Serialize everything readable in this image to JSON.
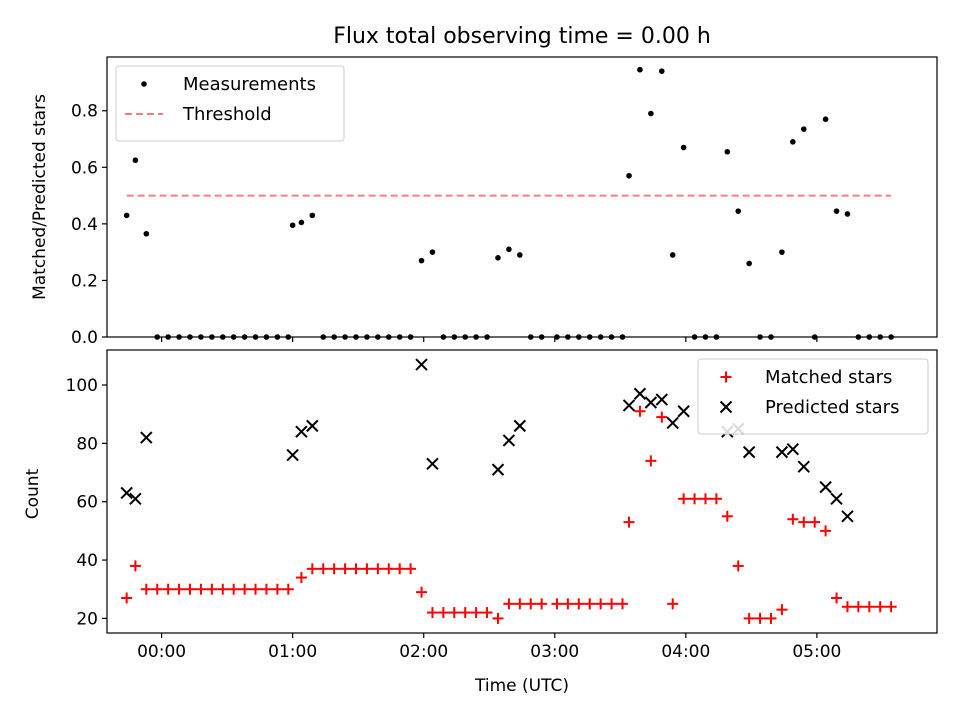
{
  "chart_data": [
    {
      "type": "scatter",
      "title": "Flux total observing time = 0.00 h",
      "xlabel": "",
      "ylabel": "Matched/Predicted stars",
      "xlim": [
        "23:35",
        "05:55"
      ],
      "ylim": [
        0,
        0.99
      ],
      "yticks": [
        "0.0",
        "0.2",
        "0.4",
        "0.6",
        "0.8"
      ],
      "grid": false,
      "legend_position": "top-left",
      "series": [
        {
          "name": "Measurements",
          "color": "#000000",
          "marker": "dot",
          "points": [
            [
              "23:44",
              0.43
            ],
            [
              "23:48",
              0.625
            ],
            [
              "23:53",
              0.365
            ],
            [
              "23:58",
              0
            ],
            [
              "00:03",
              0
            ],
            [
              "00:08",
              0
            ],
            [
              "00:13",
              0
            ],
            [
              "00:18",
              0
            ],
            [
              "00:23",
              0
            ],
            [
              "00:28",
              0
            ],
            [
              "00:33",
              0
            ],
            [
              "00:38",
              0
            ],
            [
              "00:43",
              0
            ],
            [
              "00:48",
              0
            ],
            [
              "00:53",
              0
            ],
            [
              "00:58",
              0
            ],
            [
              "01:00",
              0.395
            ],
            [
              "01:04",
              0.405
            ],
            [
              "01:09",
              0.43
            ],
            [
              "01:14",
              0
            ],
            [
              "01:19",
              0
            ],
            [
              "01:24",
              0
            ],
            [
              "01:29",
              0
            ],
            [
              "01:34",
              0
            ],
            [
              "01:39",
              0
            ],
            [
              "01:44",
              0
            ],
            [
              "01:49",
              0
            ],
            [
              "01:54",
              0
            ],
            [
              "01:59",
              0.27
            ],
            [
              "02:04",
              0.3
            ],
            [
              "02:09",
              0
            ],
            [
              "02:14",
              0
            ],
            [
              "02:19",
              0
            ],
            [
              "02:24",
              0
            ],
            [
              "02:29",
              0
            ],
            [
              "02:34",
              0.28
            ],
            [
              "02:39",
              0.31
            ],
            [
              "02:44",
              0.29
            ],
            [
              "02:49",
              0
            ],
            [
              "02:54",
              0
            ],
            [
              "03:01",
              0
            ],
            [
              "03:06",
              0
            ],
            [
              "03:11",
              0
            ],
            [
              "03:16",
              0
            ],
            [
              "03:21",
              0
            ],
            [
              "03:26",
              0
            ],
            [
              "03:31",
              0
            ],
            [
              "03:34",
              0.57
            ],
            [
              "03:39",
              0.945
            ],
            [
              "03:44",
              0.79
            ],
            [
              "03:49",
              0.94
            ],
            [
              "03:54",
              0.29
            ],
            [
              "03:59",
              0.67
            ],
            [
              "04:04",
              0
            ],
            [
              "04:09",
              0
            ],
            [
              "04:14",
              0
            ],
            [
              "04:19",
              0.655
            ],
            [
              "04:24",
              0.445
            ],
            [
              "04:29",
              0.26
            ],
            [
              "04:34",
              0
            ],
            [
              "04:39",
              0
            ],
            [
              "04:44",
              0.3
            ],
            [
              "04:49",
              0.69
            ],
            [
              "04:54",
              0.735
            ],
            [
              "04:59",
              0
            ],
            [
              "05:04",
              0.77
            ],
            [
              "05:09",
              0.445
            ],
            [
              "05:14",
              0.435
            ],
            [
              "05:19",
              0
            ],
            [
              "05:24",
              0
            ],
            [
              "05:29",
              0
            ],
            [
              "05:34",
              0
            ]
          ]
        },
        {
          "name": "Threshold",
          "color": "#f08080",
          "line": "dashed",
          "points": [
            [
              "23:44",
              0.5
            ],
            [
              "05:34",
              0.5
            ]
          ]
        }
      ]
    },
    {
      "type": "scatter",
      "title": "",
      "xlabel": "Time (UTC)",
      "ylabel": "Count",
      "xlim": [
        "23:35",
        "05:55"
      ],
      "ylim": [
        15,
        112
      ],
      "xticks": [
        "00:00",
        "01:00",
        "02:00",
        "03:00",
        "04:00",
        "05:00"
      ],
      "yticks": [
        "20",
        "40",
        "60",
        "80",
        "100"
      ],
      "grid": false,
      "legend_position": "top-right",
      "series": [
        {
          "name": "Matched stars",
          "color": "#ff0000",
          "marker": "plus",
          "points": [
            [
              "23:44",
              27
            ],
            [
              "23:48",
              38
            ],
            [
              "23:53",
              30
            ],
            [
              "23:58",
              30
            ],
            [
              "00:03",
              30
            ],
            [
              "00:08",
              30
            ],
            [
              "00:13",
              30
            ],
            [
              "00:18",
              30
            ],
            [
              "00:23",
              30
            ],
            [
              "00:28",
              30
            ],
            [
              "00:33",
              30
            ],
            [
              "00:38",
              30
            ],
            [
              "00:43",
              30
            ],
            [
              "00:48",
              30
            ],
            [
              "00:53",
              30
            ],
            [
              "00:58",
              30
            ],
            [
              "01:04",
              34
            ],
            [
              "01:09",
              37
            ],
            [
              "01:14",
              37
            ],
            [
              "01:19",
              37
            ],
            [
              "01:24",
              37
            ],
            [
              "01:29",
              37
            ],
            [
              "01:34",
              37
            ],
            [
              "01:39",
              37
            ],
            [
              "01:44",
              37
            ],
            [
              "01:49",
              37
            ],
            [
              "01:54",
              37
            ],
            [
              "01:59",
              29
            ],
            [
              "02:04",
              22
            ],
            [
              "02:09",
              22
            ],
            [
              "02:14",
              22
            ],
            [
              "02:19",
              22
            ],
            [
              "02:24",
              22
            ],
            [
              "02:29",
              22
            ],
            [
              "02:34",
              20
            ],
            [
              "02:39",
              25
            ],
            [
              "02:44",
              25
            ],
            [
              "02:49",
              25
            ],
            [
              "02:54",
              25
            ],
            [
              "03:01",
              25
            ],
            [
              "03:06",
              25
            ],
            [
              "03:11",
              25
            ],
            [
              "03:16",
              25
            ],
            [
              "03:21",
              25
            ],
            [
              "03:26",
              25
            ],
            [
              "03:31",
              25
            ],
            [
              "03:34",
              53
            ],
            [
              "03:39",
              91
            ],
            [
              "03:44",
              74
            ],
            [
              "03:49",
              89
            ],
            [
              "03:54",
              25
            ],
            [
              "03:59",
              61
            ],
            [
              "04:04",
              61
            ],
            [
              "04:09",
              61
            ],
            [
              "04:14",
              61
            ],
            [
              "04:19",
              55
            ],
            [
              "04:24",
              38
            ],
            [
              "04:29",
              20
            ],
            [
              "04:34",
              20
            ],
            [
              "04:39",
              20
            ],
            [
              "04:44",
              23
            ],
            [
              "04:49",
              54
            ],
            [
              "04:54",
              53
            ],
            [
              "04:59",
              53
            ],
            [
              "05:04",
              50
            ],
            [
              "05:09",
              27
            ],
            [
              "05:14",
              24
            ],
            [
              "05:19",
              24
            ],
            [
              "05:24",
              24
            ],
            [
              "05:29",
              24
            ],
            [
              "05:34",
              24
            ]
          ]
        },
        {
          "name": "Predicted stars",
          "color": "#000000",
          "marker": "x",
          "points": [
            [
              "23:44",
              63
            ],
            [
              "23:48",
              61
            ],
            [
              "23:53",
              82
            ],
            [
              "01:00",
              76
            ],
            [
              "01:04",
              84
            ],
            [
              "01:09",
              86
            ],
            [
              "01:59",
              107
            ],
            [
              "02:04",
              73
            ],
            [
              "02:34",
              71
            ],
            [
              "02:39",
              81
            ],
            [
              "02:44",
              86
            ],
            [
              "03:34",
              93
            ],
            [
              "03:39",
              97
            ],
            [
              "03:44",
              94
            ],
            [
              "03:49",
              95
            ],
            [
              "03:54",
              87
            ],
            [
              "03:59",
              91
            ],
            [
              "04:19",
              84
            ],
            [
              "04:24",
              85
            ],
            [
              "04:29",
              77
            ],
            [
              "04:44",
              77
            ],
            [
              "04:49",
              78
            ],
            [
              "04:54",
              72
            ],
            [
              "05:04",
              65
            ],
            [
              "05:09",
              61
            ],
            [
              "05:14",
              55
            ]
          ]
        }
      ]
    }
  ]
}
